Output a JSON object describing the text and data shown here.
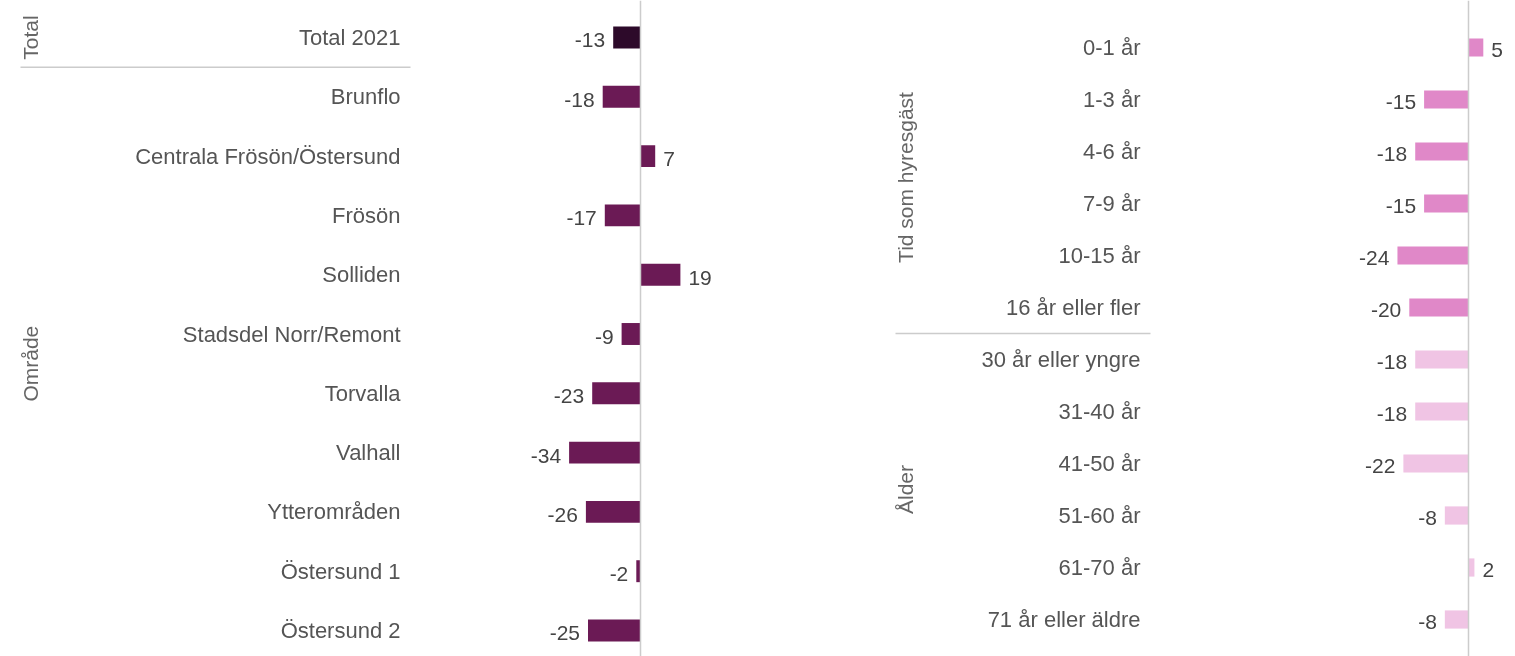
{
  "chart_data": [
    {
      "type": "bar",
      "orientation": "horizontal",
      "data_labels": true,
      "categories": [
        "Total 2021",
        "Brunflo",
        "Centrala Frösön/Östersund",
        "Frösön",
        "Solliden",
        "Stadsdel Norr/Remont",
        "Torvalla",
        "Valhall",
        "Ytterområden",
        "Östersund 1",
        "Östersund 2"
      ],
      "values": [
        -13,
        -18,
        7,
        -17,
        19,
        -9,
        -23,
        -34,
        -26,
        -2,
        -25
      ],
      "colors": [
        "#2d0a2a",
        "#6b1a55",
        "#6b1a55",
        "#6b1a55",
        "#6b1a55",
        "#6b1a55",
        "#6b1a55",
        "#6b1a55",
        "#6b1a55",
        "#6b1a55",
        "#6b1a55"
      ],
      "annotations": [
        "Total",
        "Område"
      ]
    },
    {
      "type": "bar",
      "orientation": "horizontal",
      "data_labels": true,
      "categories": [
        "0-1 år",
        "1-3 år",
        "4-6 år",
        "7-9 år",
        "10-15 år",
        "16 år eller fler",
        "30 år eller yngre",
        "31-40 år",
        "41-50 år",
        "51-60 år",
        "61-70 år",
        "71 år eller äldre"
      ],
      "values": [
        5,
        -15,
        -18,
        -15,
        -24,
        -20,
        -18,
        -18,
        -22,
        -8,
        2,
        -8
      ],
      "colors": [
        "#e088c8",
        "#e088c8",
        "#e088c8",
        "#e088c8",
        "#e088c8",
        "#e088c8",
        "#f0c4e4",
        "#f0c4e4",
        "#f0c4e4",
        "#f0c4e4",
        "#f0c4e4",
        "#f0c4e4"
      ],
      "annotations": [
        "Tid som hyresgäst",
        "Ålder"
      ]
    }
  ]
}
